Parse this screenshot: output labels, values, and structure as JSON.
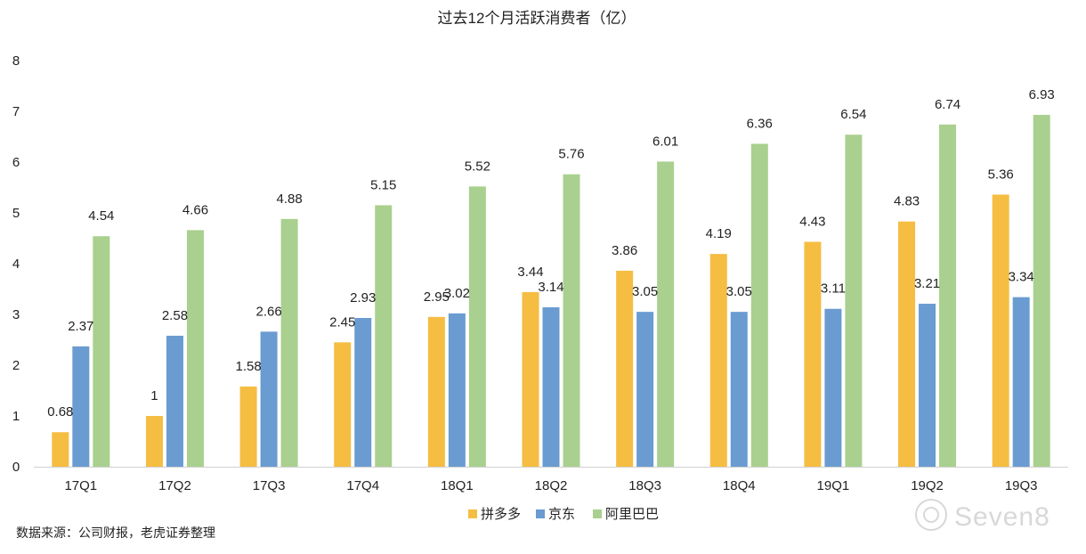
{
  "chart_data": {
    "type": "bar",
    "title": "过去12个月活跃消费者（亿）",
    "categories": [
      "17Q1",
      "17Q2",
      "17Q3",
      "17Q4",
      "18Q1",
      "18Q2",
      "18Q3",
      "18Q4",
      "19Q1",
      "19Q2",
      "19Q3"
    ],
    "series": [
      {
        "name": "拼多多",
        "color": "#f5bd42",
        "values": [
          0.68,
          1,
          1.58,
          2.45,
          2.95,
          3.44,
          3.86,
          4.19,
          4.43,
          4.83,
          5.36
        ]
      },
      {
        "name": "京东",
        "color": "#6a9bd1",
        "values": [
          2.37,
          2.58,
          2.66,
          2.93,
          3.02,
          3.14,
          3.05,
          3.05,
          3.11,
          3.21,
          3.34
        ]
      },
      {
        "name": "阿里巴巴",
        "color": "#a9d08e",
        "values": [
          4.54,
          4.66,
          4.88,
          5.15,
          5.52,
          5.76,
          6.01,
          6.36,
          6.54,
          6.74,
          6.93
        ]
      }
    ],
    "ylim": [
      0,
      8
    ],
    "yticks": [
      0,
      1,
      2,
      3,
      4,
      5,
      6,
      7,
      8
    ],
    "grid": false,
    "legend_position": "bottom"
  },
  "source_note": "数据来源：公司财报，老虎证券整理",
  "watermark": "Seven8"
}
